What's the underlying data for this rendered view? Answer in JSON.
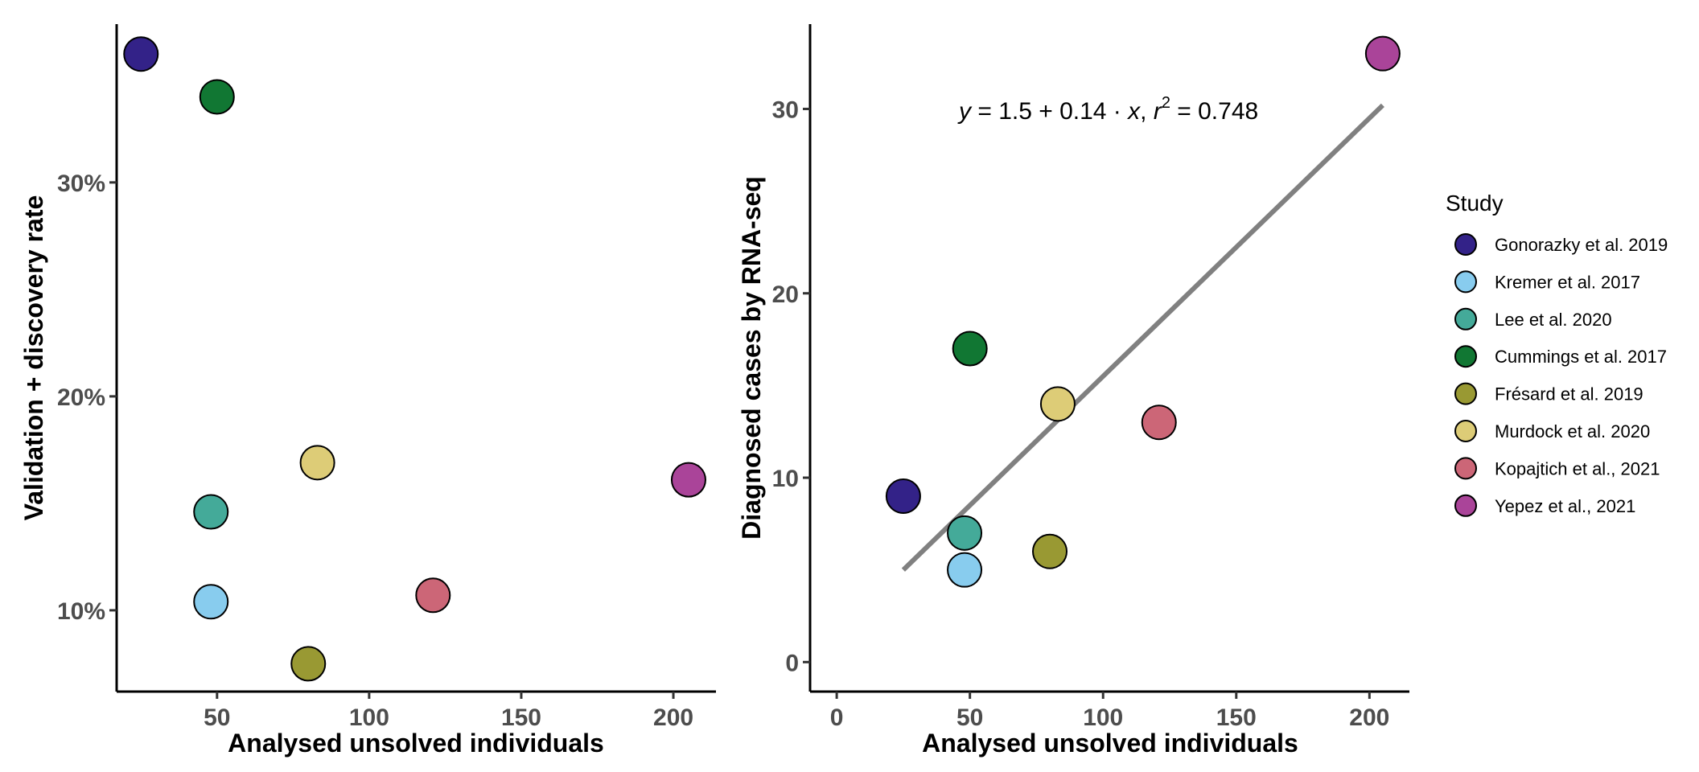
{
  "chart_data": [
    {
      "type": "scatter",
      "panel": "left",
      "xlabel": "Analysed unsolved individuals",
      "ylabel": "Validation + discovery rate",
      "xlim": [
        17,
        214
      ],
      "ylim": [
        6.2,
        37.4
      ],
      "x_ticks": [
        50,
        100,
        150,
        200
      ],
      "y_ticks": [
        10,
        20,
        30
      ],
      "y_tick_labels": [
        "10%",
        "20%",
        "30%"
      ],
      "grid": false,
      "points": [
        {
          "study": "Gonorazky et al. 2019",
          "x": 25,
          "y": 36.0
        },
        {
          "study": "Kremer et al. 2017",
          "x": 48,
          "y": 10.4
        },
        {
          "study": "Lee et al. 2020",
          "x": 48,
          "y": 14.6
        },
        {
          "study": "Cummings et al. 2017",
          "x": 50,
          "y": 34.0
        },
        {
          "study": "Frésard et al. 2019",
          "x": 80,
          "y": 7.5
        },
        {
          "study": "Murdock et al. 2020",
          "x": 83,
          "y": 16.9
        },
        {
          "study": "Kopajtich et al., 2021",
          "x": 121,
          "y": 10.7
        },
        {
          "study": "Yepez et al., 2021",
          "x": 205,
          "y": 16.1
        }
      ]
    },
    {
      "type": "scatter",
      "panel": "right",
      "xlabel": "Analysed unsolved individuals",
      "ylabel": "Diagnosed cases by RNA-seq",
      "xlim": [
        -10,
        215
      ],
      "ylim": [
        -1.6,
        34.6
      ],
      "x_ticks": [
        0,
        50,
        100,
        150,
        200
      ],
      "y_ticks": [
        0,
        10,
        20,
        30
      ],
      "grid": false,
      "points": [
        {
          "study": "Gonorazky et al. 2019",
          "x": 25,
          "y": 9
        },
        {
          "study": "Kremer et al. 2017",
          "x": 48,
          "y": 5
        },
        {
          "study": "Lee et al. 2020",
          "x": 48,
          "y": 7
        },
        {
          "study": "Cummings et al. 2017",
          "x": 50,
          "y": 17
        },
        {
          "study": "Frésard et al. 2019",
          "x": 80,
          "y": 6
        },
        {
          "study": "Murdock et al. 2020",
          "x": 83,
          "y": 14
        },
        {
          "study": "Kopajtich et al., 2021",
          "x": 121,
          "y": 13
        },
        {
          "study": "Yepez et al., 2021",
          "x": 205,
          "y": 33
        }
      ],
      "regression": {
        "intercept": 1.5,
        "slope": 0.14,
        "x_range": [
          25,
          205
        ],
        "r2": 0.748,
        "color": "#808080",
        "equation_parts": {
          "y": "y",
          "lhs": " = 1.5 + 0.14 · ",
          "x": "x",
          "sep": ",  ",
          "r": "r",
          "sup": "2",
          "rhs": " = 0.748"
        }
      }
    }
  ],
  "legend": {
    "title": "Study",
    "placement": "right",
    "items": [
      {
        "label": "Gonorazky et al. 2019",
        "color": "#332288"
      },
      {
        "label": "Kremer et al. 2017",
        "color": "#88CCEE"
      },
      {
        "label": "Lee et al. 2020",
        "color": "#44AA99"
      },
      {
        "label": "Cummings et al. 2017",
        "color": "#117733"
      },
      {
        "label": "Frésard et al. 2019",
        "color": "#999933"
      },
      {
        "label": "Murdock et al. 2020",
        "color": "#DDCC77"
      },
      {
        "label": "Kopajtich et al., 2021",
        "color": "#CC6677"
      },
      {
        "label": "Yepez et al., 2021",
        "color": "#AA4499"
      }
    ]
  }
}
